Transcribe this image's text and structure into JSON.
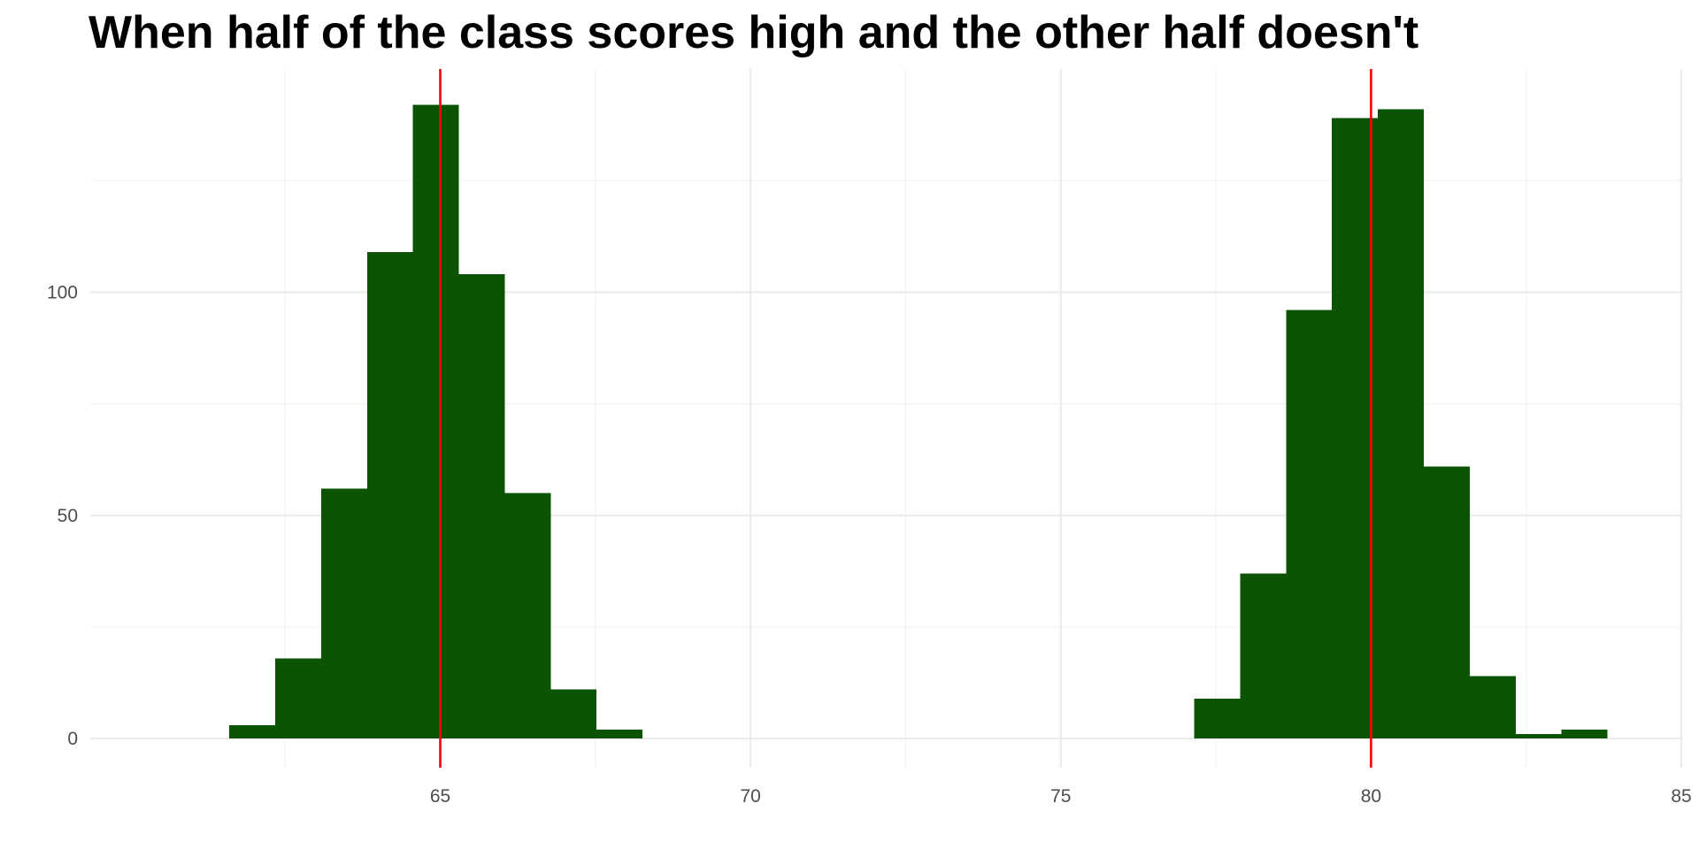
{
  "chart_data": {
    "type": "bar",
    "title": "When half of the class scores high and the other half doesn't",
    "xlabel": "",
    "ylabel": "",
    "bin_width": 0.74,
    "bins": [
      {
        "start": 61.6,
        "count": 3
      },
      {
        "start": 62.34,
        "count": 18
      },
      {
        "start": 63.08,
        "count": 56
      },
      {
        "start": 63.82,
        "count": 109
      },
      {
        "start": 64.56,
        "count": 142
      },
      {
        "start": 65.3,
        "count": 104
      },
      {
        "start": 66.04,
        "count": 55
      },
      {
        "start": 66.78,
        "count": 11
      },
      {
        "start": 67.52,
        "count": 2
      },
      {
        "start": 77.15,
        "count": 9
      },
      {
        "start": 77.89,
        "count": 37
      },
      {
        "start": 78.63,
        "count": 96
      },
      {
        "start": 79.37,
        "count": 139
      },
      {
        "start": 80.11,
        "count": 141
      },
      {
        "start": 80.85,
        "count": 61
      },
      {
        "start": 81.59,
        "count": 14
      },
      {
        "start": 82.33,
        "count": 1
      },
      {
        "start": 83.07,
        "count": 2
      }
    ],
    "xlim": [
      59.36,
      85.0
    ],
    "ylim": [
      -6.5,
      150
    ],
    "x_ticks": [
      65,
      70,
      75,
      80,
      85
    ],
    "y_ticks": [
      0,
      50,
      100
    ],
    "reference_lines": [
      65,
      80
    ],
    "grid": true,
    "colors": {
      "bars": "#0d5304",
      "reference_lines": "#ff0000",
      "grid_major": "#ebebeb",
      "grid_minor": "#f2f2f2",
      "tick_labels": "#4d4d4d",
      "title": "#000000"
    }
  }
}
